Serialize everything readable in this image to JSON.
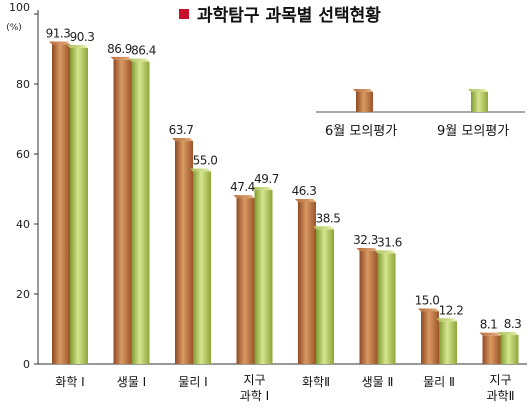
{
  "chart_data": {
    "type": "bar",
    "title": "과학탐구 과목별 선택현황",
    "ylabel": "(%)",
    "ylim": [
      0,
      100
    ],
    "yticks": [
      "0",
      "20",
      "40",
      "60",
      "80",
      "100"
    ],
    "categories": [
      [
        "화학 Ⅰ"
      ],
      [
        "생물 Ⅰ"
      ],
      [
        "물리 Ⅰ"
      ],
      [
        "지구",
        "과학 Ⅰ"
      ],
      [
        "화학Ⅱ"
      ],
      [
        "생물 Ⅱ"
      ],
      [
        "물리 Ⅱ"
      ],
      [
        "지구",
        "과학Ⅱ"
      ]
    ],
    "series": [
      {
        "name": "6월 모의평가",
        "values": [
          91.3,
          86.9,
          63.7,
          47.4,
          46.3,
          32.3,
          15.0,
          8.1
        ],
        "labels": [
          "91.3",
          "86.9",
          "63.7",
          "47.4",
          "46.3",
          "32.3",
          "15.0",
          "8.1"
        ],
        "color": "#c0703e"
      },
      {
        "name": "9월 모의평가",
        "values": [
          90.3,
          86.4,
          55.0,
          49.7,
          38.5,
          31.6,
          12.2,
          8.3
        ],
        "labels": [
          "90.3",
          "86.4",
          "55.0",
          "49.7",
          "38.5",
          "31.6",
          "12.2",
          "8.3"
        ],
        "color": "#a9c64e"
      }
    ],
    "grid": false,
    "legend": "top-right",
    "title_marker_color": "#c8102e"
  }
}
